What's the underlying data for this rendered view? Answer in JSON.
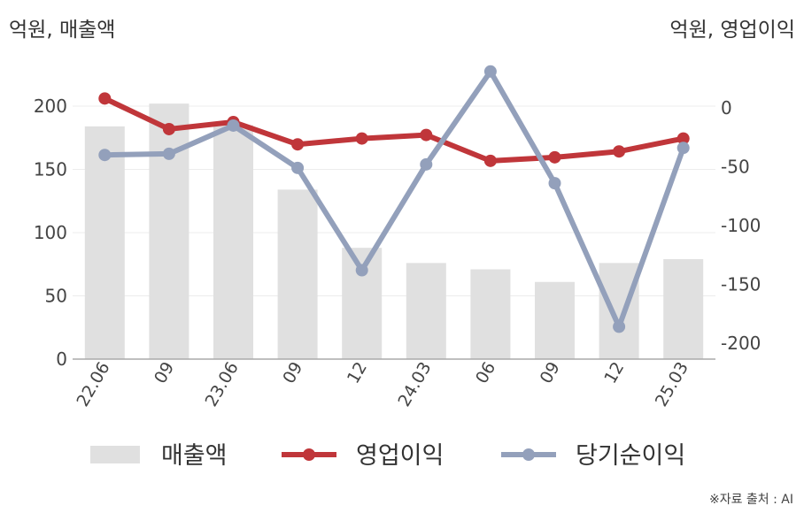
{
  "unit_left": "억원, 매출액",
  "unit_right": "억원, 영업이익",
  "source": "※자료 출처 : AI",
  "chart_data": {
    "type": "bar+line",
    "categories": [
      "22.06",
      "09",
      "23.06",
      "09",
      "12",
      "24.03",
      "06",
      "09",
      "12",
      "25.03"
    ],
    "series": [
      {
        "name": "매출액",
        "type": "bar",
        "axis": "left",
        "color": "#e0e0e0",
        "values": [
          184,
          202,
          185,
          134,
          88,
          76,
          71,
          61,
          76,
          79
        ]
      },
      {
        "name": "영업이익",
        "type": "line",
        "axis": "right",
        "color": "#c0363a",
        "values": [
          8,
          -18,
          -12,
          -31,
          -26,
          -23,
          -45,
          -42,
          -37,
          -26
        ]
      },
      {
        "name": "당기순이익",
        "type": "line",
        "axis": "right",
        "color": "#93a0bb",
        "values": [
          -40,
          -39,
          -15,
          -51,
          -138,
          -48,
          31,
          -64,
          -186,
          -34
        ]
      }
    ],
    "y_left": {
      "ticks": [
        0,
        50,
        100,
        150,
        200
      ],
      "range": [
        0,
        235
      ]
    },
    "y_right": {
      "ticks": [
        0,
        -50,
        -100,
        -150,
        -200
      ],
      "range": [
        -215,
        40
      ]
    },
    "grid": true,
    "legend_position": "bottom"
  }
}
